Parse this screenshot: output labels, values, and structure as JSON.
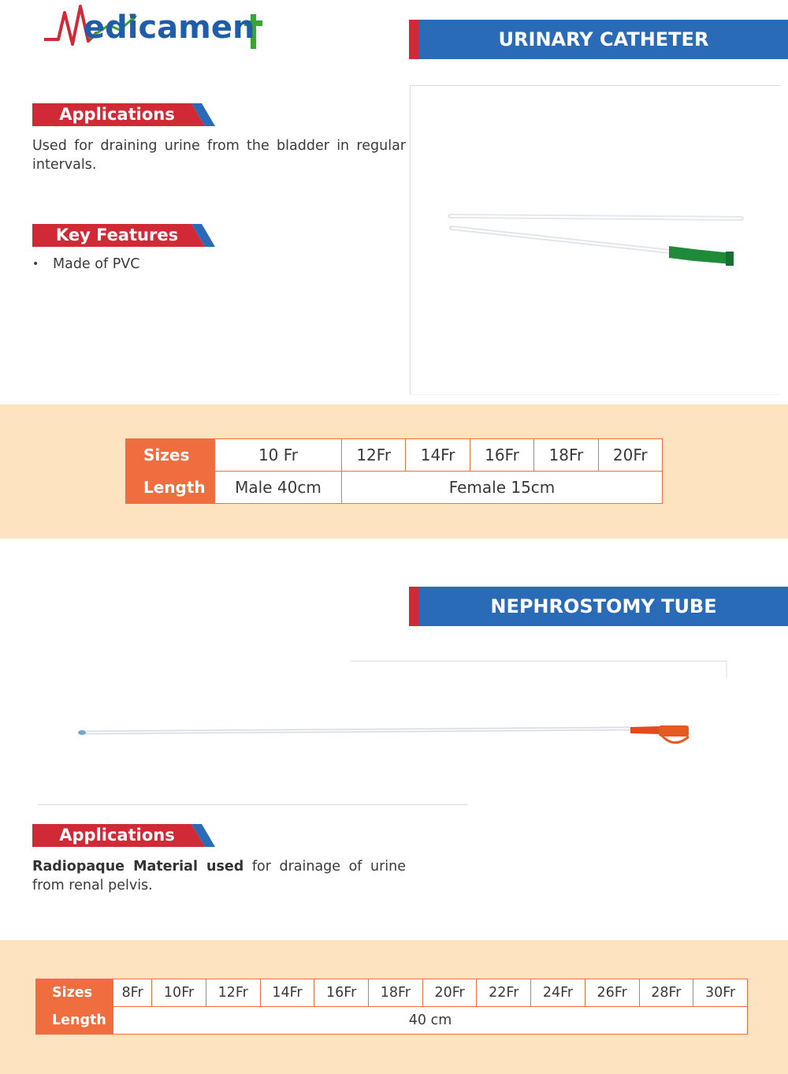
{
  "brand": {
    "name": "Medicament",
    "colors": {
      "blue": "#1f5da8",
      "red": "#d12a36",
      "green": "#3aa335"
    }
  },
  "colors": {
    "title_bar": "#2a6bb8",
    "title_accent": "#d12a36",
    "tag_red": "#d12a36",
    "table_orange": "#ef6d3e",
    "band": "#fde3bf"
  },
  "catheter": {
    "title": "URINARY CATHETER",
    "applications_label": "Applications",
    "applications_text": "Used for draining urine from the bladder in regular intervals.",
    "features_label": "Key Features",
    "features": [
      "Made of PVC"
    ],
    "table": {
      "sizes_label": "Sizes",
      "length_label": "Length",
      "sizes": [
        "10 Fr",
        "12Fr",
        "14Fr",
        "16Fr",
        "18Fr",
        "20Fr"
      ],
      "lengths": [
        "Male 40cm",
        "Female 15cm"
      ]
    }
  },
  "nephrostomy": {
    "title": "NEPHROSTOMY TUBE",
    "applications_label": "Applications",
    "applications_bold": "Radiopaque Material used",
    "applications_text": " for drainage of urine from renal pelvis.",
    "table": {
      "sizes_label": "Sizes",
      "length_label": "Length",
      "sizes": [
        "8Fr",
        "10Fr",
        "12Fr",
        "14Fr",
        "16Fr",
        "18Fr",
        "20Fr",
        "22Fr",
        "24Fr",
        "26Fr",
        "28Fr",
        "30Fr"
      ],
      "length": "40 cm"
    }
  }
}
